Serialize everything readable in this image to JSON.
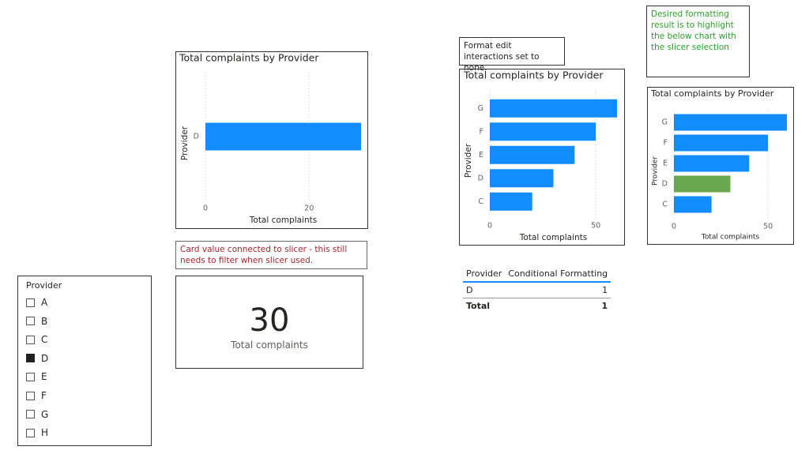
{
  "chart_data": [
    {
      "type": "hbar",
      "title": "Total complaints by Provider",
      "y_label": "Provider",
      "x_label": "Total complaints",
      "categories": [
        "D"
      ],
      "values": [
        30
      ],
      "color": "#118dff",
      "xlim": [
        0,
        30
      ],
      "xticks": [
        0,
        20
      ],
      "grid": true
    },
    {
      "type": "hbar",
      "title": "Total complaints by Provider",
      "y_label": "Provider",
      "x_label": "Total complaints",
      "categories": [
        "G",
        "F",
        "E",
        "D",
        "C"
      ],
      "values": [
        60,
        50,
        40,
        30,
        20
      ],
      "color": "#118dff",
      "xlim": [
        0,
        60
      ],
      "xticks": [
        0,
        50
      ],
      "grid": true
    },
    {
      "type": "hbar",
      "title": "Total complaints by Provider",
      "y_label": "Provider",
      "x_label": "Total complaints",
      "categories": [
        "G",
        "F",
        "E",
        "D",
        "C"
      ],
      "values": [
        60,
        50,
        40,
        30,
        20
      ],
      "colors": [
        "#118dff",
        "#118dff",
        "#118dff",
        "#6aa84f",
        "#118dff"
      ],
      "xlim": [
        0,
        60
      ],
      "xticks": [
        0,
        50
      ],
      "grid": true
    }
  ],
  "notes": {
    "interactions": "Format edit interactions set to none.",
    "desired": "Desired formatting result is to highlight the below chart with the slicer selection",
    "card_note": "Card value connected to slicer - this still needs to filter when slicer used."
  },
  "card": {
    "value": 30,
    "label": "Total complaints"
  },
  "slicer": {
    "title": "Provider",
    "items": [
      {
        "label": "A",
        "checked": false
      },
      {
        "label": "B",
        "checked": false
      },
      {
        "label": "C",
        "checked": false
      },
      {
        "label": "D",
        "checked": true
      },
      {
        "label": "E",
        "checked": false
      },
      {
        "label": "F",
        "checked": false
      },
      {
        "label": "G",
        "checked": false
      },
      {
        "label": "H",
        "checked": false
      }
    ]
  },
  "table": {
    "columns": [
      "Provider",
      "Conditional Formatting"
    ],
    "rows": [
      [
        "D",
        1
      ]
    ],
    "total": [
      "Total",
      1
    ]
  }
}
